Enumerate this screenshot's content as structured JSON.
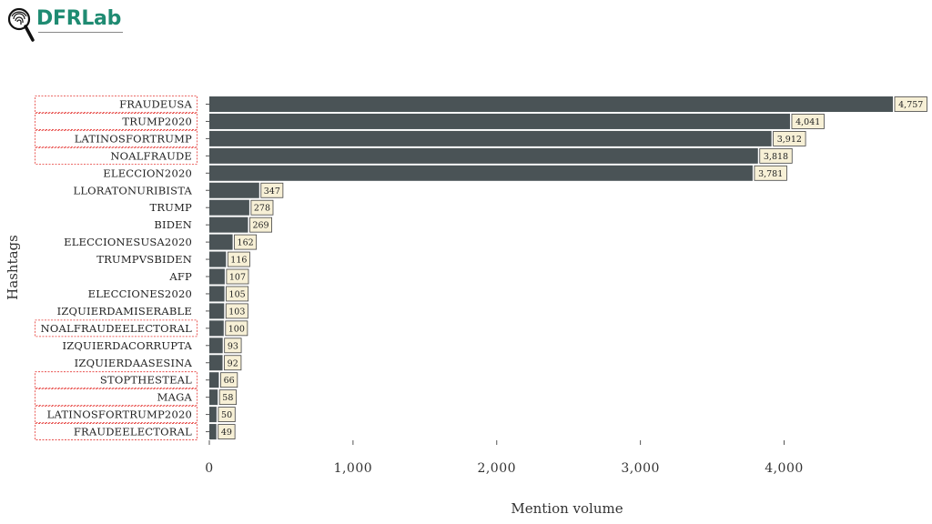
{
  "brand": {
    "logo_text": "DFRLab"
  },
  "chart_data": {
    "type": "bar",
    "orientation": "horizontal",
    "xlabel": "Mention volume",
    "ylabel": "Hashtags",
    "xlim": [
      0,
      4900
    ],
    "xticks": [
      0,
      1000,
      2000,
      3000,
      4000
    ],
    "xtick_labels": [
      "0",
      "1,000",
      "2,000",
      "3,000",
      "4,000"
    ],
    "bar_color": "#4a5356",
    "highlight_color": "#e53935",
    "categories": [
      "FRAUDEUSA",
      "TRUMP2020",
      "LATINOSFORTRUMP",
      "NOALFRAUDE",
      "ELECCION2020",
      "LLORATONURIBISTA",
      "TRUMP",
      "BIDEN",
      "ELECCIONESUSA2020",
      "TRUMPVSBIDEN",
      "AFP",
      "ELECCIONES2020",
      "IZQUIERDAMISERABLE",
      "NOALFRAUDEELECTORAL",
      "IZQUIERDACORRUPTA",
      "IZQUIERDAASESINA",
      "STOPTHESTEAL",
      "MAGA",
      "LATINOSFORTRUMP2020",
      "FRAUDEELECTORAL"
    ],
    "values": [
      4757,
      4041,
      3912,
      3818,
      3781,
      347,
      278,
      269,
      162,
      116,
      107,
      105,
      103,
      100,
      93,
      92,
      66,
      58,
      50,
      49
    ],
    "value_labels": [
      "4,757",
      "4,041",
      "3,912",
      "3,818",
      "3,781",
      "347",
      "278",
      "269",
      "162",
      "116",
      "107",
      "105",
      "103",
      "100",
      "93",
      "92",
      "66",
      "58",
      "50",
      "49"
    ],
    "highlighted": [
      true,
      true,
      true,
      true,
      false,
      false,
      false,
      false,
      false,
      false,
      false,
      false,
      false,
      true,
      false,
      false,
      true,
      true,
      true,
      true
    ]
  }
}
